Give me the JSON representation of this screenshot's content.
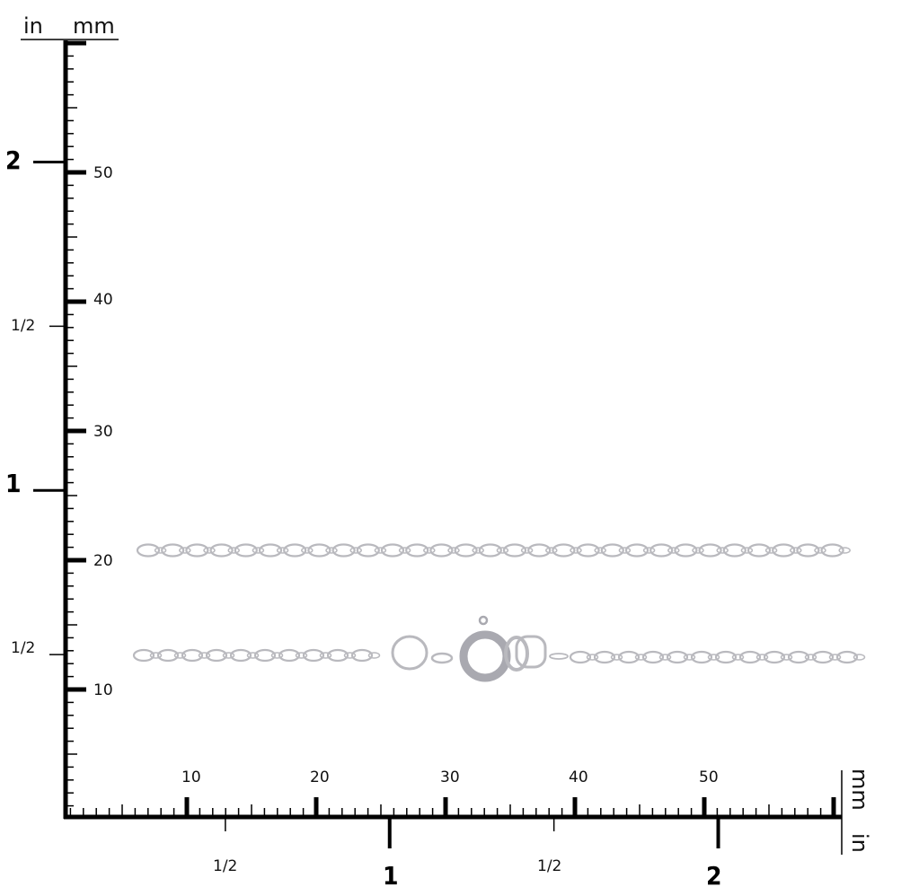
{
  "vertical_ruler": {
    "unit_left": "in",
    "unit_right": "mm",
    "mm_labels": [
      "10",
      "20",
      "30",
      "40",
      "50"
    ],
    "in_labels": {
      "half_low": "1/2",
      "one": "1",
      "half_high": "1/2",
      "two": "2"
    }
  },
  "horizontal_ruler": {
    "unit_top": "mm",
    "unit_bottom": "in",
    "mm_labels": [
      "10",
      "20",
      "30",
      "40",
      "50"
    ],
    "in_labels": {
      "half_low": "1/2",
      "one": "1",
      "half_high": "1/2",
      "two": "2"
    }
  },
  "product": {
    "type": "chain with spring ring clasp",
    "color": "#c8c8cc"
  }
}
